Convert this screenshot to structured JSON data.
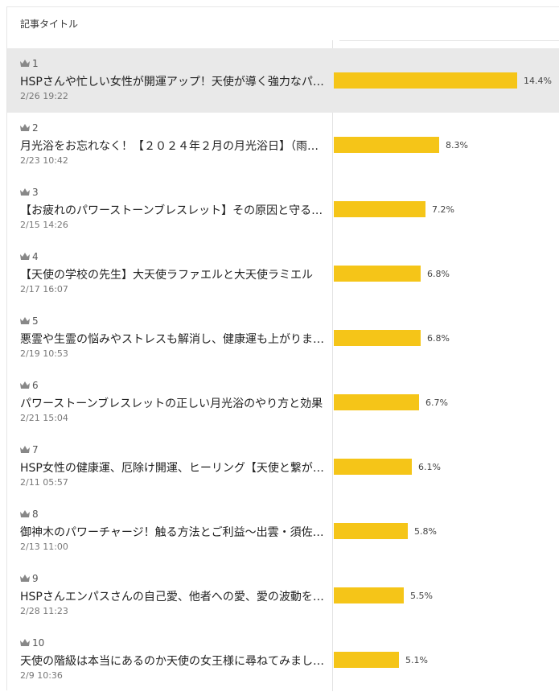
{
  "header": {
    "title": "記事タイトル"
  },
  "rank_icon": "crown-icon",
  "bar_color": "#f5c518",
  "max_percent": 14.4,
  "rows": [
    {
      "rank": "1",
      "title": "HSPさんや忙しい女性が開運アップ！天使が導く強力なパ…",
      "date": "2/26 19:22",
      "percent_label": "14.4%",
      "percent": 14.4,
      "highlight": true
    },
    {
      "rank": "2",
      "title": "月光浴をお忘れなく！【２０２４年２月の月光浴日】（雨…",
      "date": "2/23 10:42",
      "percent_label": "8.3%",
      "percent": 8.3
    },
    {
      "rank": "3",
      "title": "【お疲れのパワーストーンブレスレット】その原因と守る…",
      "date": "2/15 14:26",
      "percent_label": "7.2%",
      "percent": 7.2
    },
    {
      "rank": "4",
      "title": "【天使の学校の先生】大天使ラファエルと大天使ラミエル",
      "date": "2/17 16:07",
      "percent_label": "6.8%",
      "percent": 6.8
    },
    {
      "rank": "5",
      "title": "悪霊や生霊の悩みやストレスも解消し、健康運も上がりま…",
      "date": "2/19 10:53",
      "percent_label": "6.8%",
      "percent": 6.8
    },
    {
      "rank": "6",
      "title": "パワーストーンブレスレットの正しい月光浴のやり方と効果",
      "date": "2/21 15:04",
      "percent_label": "6.7%",
      "percent": 6.7
    },
    {
      "rank": "7",
      "title": "HSP女性の健康運、厄除け開運、ヒーリング【天使と繋が…",
      "date": "2/11 05:57",
      "percent_label": "6.1%",
      "percent": 6.1
    },
    {
      "rank": "8",
      "title": "御神木のパワーチャージ！触る方法とご利益～出雲・須佐…",
      "date": "2/13 11:00",
      "percent_label": "5.8%",
      "percent": 5.8
    },
    {
      "rank": "9",
      "title": "HSPさんエンパスさんの自己愛、他者への愛、愛の波動を…",
      "date": "2/28 11:23",
      "percent_label": "5.5%",
      "percent": 5.5
    },
    {
      "rank": "10",
      "title": "天使の階級は本当にあるのか天使の女王様に尋ねてみまし…",
      "date": "2/9 10:36",
      "percent_label": "5.1%",
      "percent": 5.1
    }
  ]
}
